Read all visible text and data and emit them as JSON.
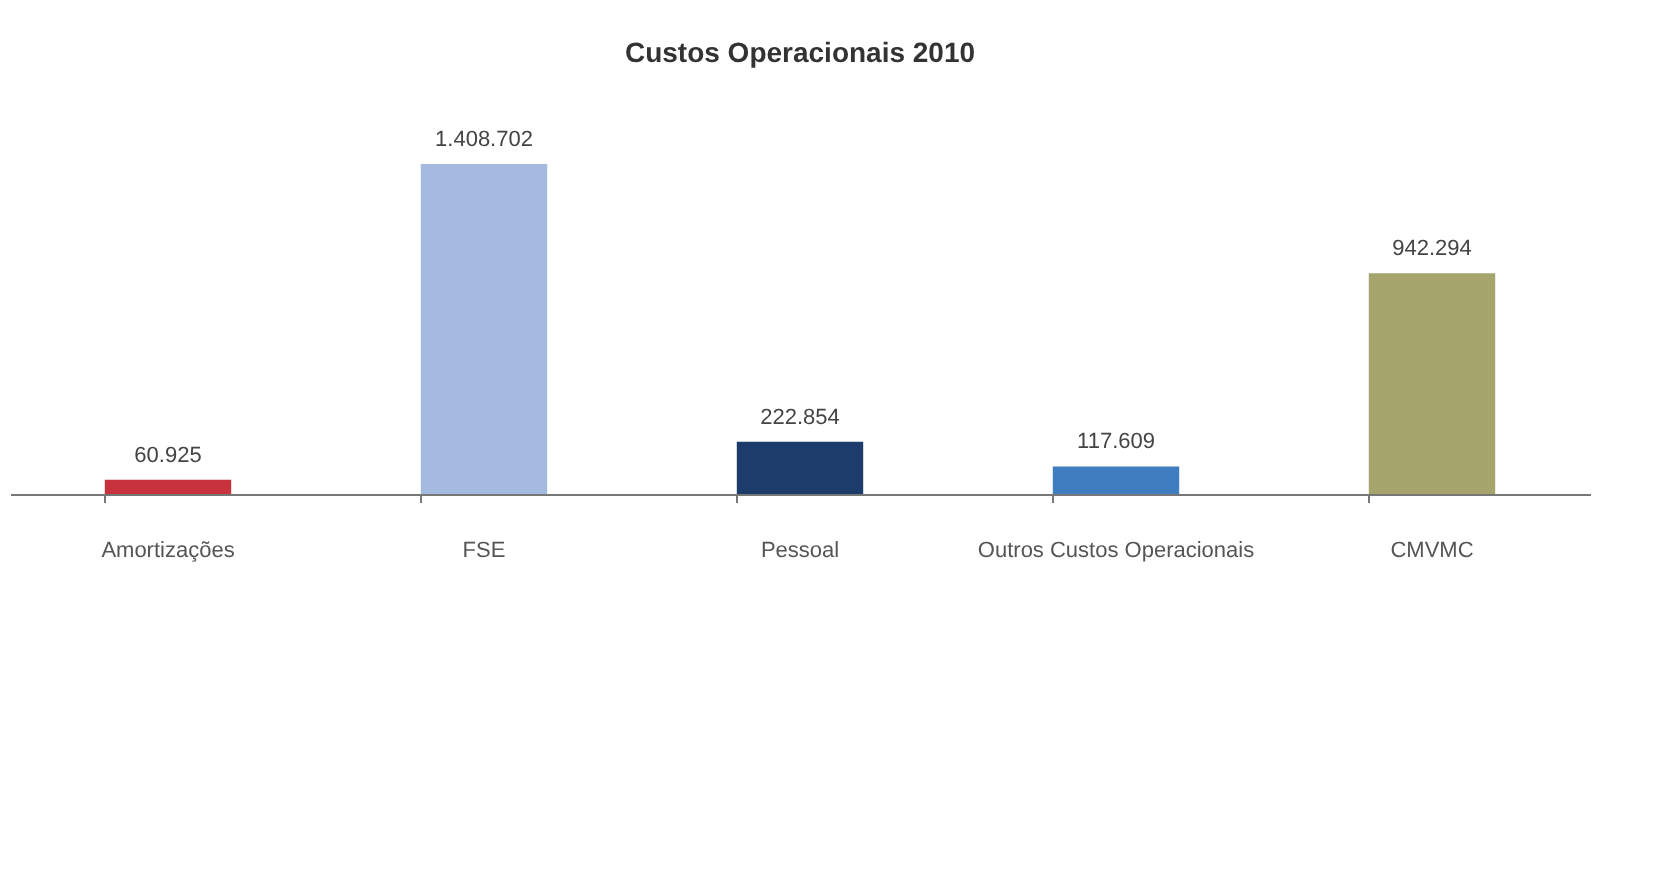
{
  "chart_data": {
    "type": "bar",
    "title": "Custos Operacionais 2010",
    "categories": [
      "Amortizações",
      "FSE",
      "Pessoal",
      "Outros Custos Operacionais",
      "CMVMC"
    ],
    "values": [
      60925,
      1408702,
      222854,
      117609,
      942294
    ],
    "value_labels": [
      "60.925",
      "1.408.702",
      "222.854",
      "117.609",
      "942.294"
    ],
    "colors": [
      "#c8323c",
      "#a6b9de",
      "#1d3c6c",
      "#3f7cc0",
      "#a4a46c"
    ],
    "grid": false,
    "legend": false
  }
}
